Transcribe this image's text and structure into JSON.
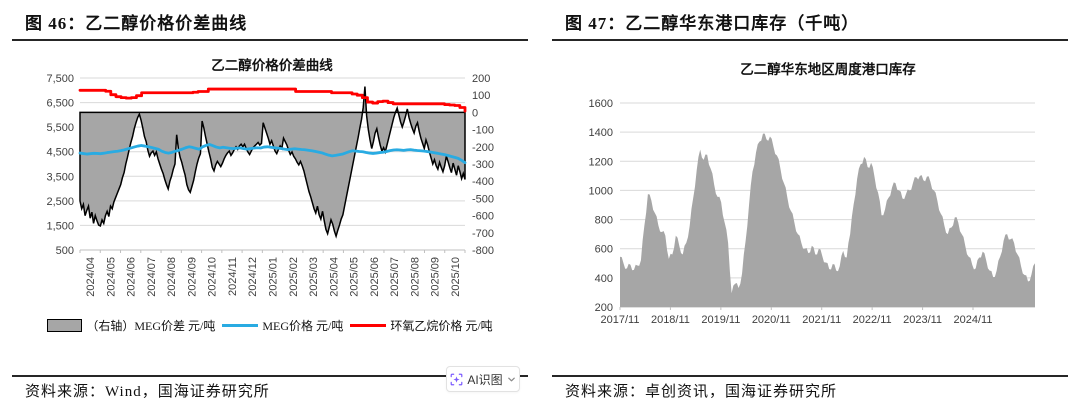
{
  "figures": [
    {
      "heading": "图 46：乙二醇价格价差曲线",
      "source": "资料来源：Wind，国海证券研究所"
    },
    {
      "heading": "图 47：乙二醇华东港口库存（千吨）",
      "source": "资料来源：卓创资讯，国海证券研究所"
    }
  ],
  "ai_badge": {
    "label": "AI识图"
  },
  "chart_data": [
    {
      "type": "line",
      "title": "乙二醇价格价差曲线",
      "x_labels": [
        "2024/04",
        "2024/05",
        "2024/06",
        "2024/07",
        "2024/08",
        "2024/09",
        "2024/10",
        "2024/11",
        "2024/12",
        "2025/01",
        "2025/02",
        "2025/03",
        "2025/04",
        "2025/05",
        "2025/06",
        "2025/07",
        "2025/08",
        "2025/09",
        "2025/10"
      ],
      "left_axis": {
        "min": 500,
        "max": 7500,
        "tick_values": [
          500,
          1500,
          2500,
          3500,
          4500,
          5500,
          6500,
          7500
        ],
        "tick_labels": [
          "500",
          "1,500",
          "2,500",
          "3,500",
          "4,500",
          "5,500",
          "6,500",
          "7,500"
        ]
      },
      "right_axis": {
        "min": -800,
        "max": 200,
        "tick_values": [
          200,
          100,
          0,
          -100,
          -200,
          -300,
          -400,
          -500,
          -600,
          -700,
          -800
        ],
        "tick_labels": [
          "200",
          "100",
          "0",
          "-100",
          "-200",
          "-300",
          "-400",
          "-500",
          "-600",
          "-700",
          "-800"
        ]
      },
      "series": [
        {
          "name": "（右轴）MEG价差 元/吨",
          "style": "area",
          "axis": "right",
          "fill": "#a6a6a6",
          "stroke": "#000000",
          "values": [
            -515,
            -560,
            -535,
            -600,
            -570,
            -545,
            -615,
            -580,
            -645,
            -600,
            -630,
            -655,
            -660,
            -625,
            -645,
            -600,
            -575,
            -605,
            -545,
            -560,
            -520,
            -495,
            -470,
            -445,
            -420,
            -380,
            -350,
            -300,
            -260,
            -215,
            -175,
            -140,
            -95,
            -60,
            -30,
            -10,
            -45,
            -90,
            -140,
            -170,
            -220,
            -255,
            -235,
            -225,
            -250,
            -230,
            -270,
            -300,
            -330,
            -355,
            -390,
            -420,
            -445,
            -400,
            -370,
            -330,
            -300,
            -130,
            -210,
            -260,
            -290,
            -330,
            -365,
            -420,
            -450,
            -465,
            -430,
            -395,
            -345,
            -300,
            -265,
            -240,
            -50,
            -90,
            -140,
            -185,
            -230,
            -270,
            -320,
            -340,
            -305,
            -285,
            -300,
            -315,
            -295,
            -270,
            -250,
            -235,
            -225,
            -250,
            -235,
            -215,
            -200,
            -215,
            -195,
            -185,
            -200,
            -185,
            -210,
            -230,
            -245,
            -225,
            -205,
            -195,
            -185,
            -175,
            -190,
            -180,
            -60,
            -90,
            -120,
            -150,
            -185,
            -165,
            -195,
            -225,
            -240,
            -215,
            -195,
            -210,
            -150,
            -170,
            -190,
            -220,
            -245,
            -230,
            -255,
            -270,
            -290,
            -305,
            -285,
            -310,
            -340,
            -380,
            -420,
            -460,
            -490,
            -525,
            -560,
            -585,
            -545,
            -595,
            -620,
            -575,
            -630,
            -680,
            -705,
            -665,
            -625,
            -650,
            -690,
            -720,
            -685,
            -655,
            -620,
            -595,
            -545,
            -495,
            -445,
            -395,
            -345,
            -295,
            -245,
            -195,
            -145,
            -90,
            -40,
            30,
            150,
            -20,
            -100,
            -160,
            -210,
            -170,
            -120,
            -95,
            -145,
            -190,
            -225,
            -205,
            -230,
            -190,
            -150,
            -110,
            -70,
            -30,
            0,
            25,
            -15,
            -55,
            -85,
            -55,
            -20,
            20,
            -30,
            -65,
            -95,
            -120,
            -80,
            -60,
            -110,
            -150,
            -180,
            -210,
            -160,
            -190,
            -230,
            -265,
            -300,
            -275,
            -310,
            -330,
            -290,
            -320,
            -345,
            -310,
            -255,
            -285,
            -320,
            -350,
            -295,
            -330,
            -365,
            -310,
            -345,
            -385,
            -355,
            -390
          ]
        },
        {
          "name": "MEG价格 元/吨",
          "style": "line",
          "axis": "left",
          "color": "#29abe2",
          "values": [
            4445,
            4425,
            4405,
            4420,
            4435,
            4430,
            4420,
            4440,
            4465,
            4485,
            4505,
            4520,
            4545,
            4575,
            4615,
            4655,
            4695,
            4730,
            4755,
            4730,
            4700,
            4670,
            4635,
            4600,
            4520,
            4470,
            4445,
            4475,
            4520,
            4560,
            4605,
            4660,
            4700,
            4675,
            4635,
            4600,
            4700,
            4755,
            4795,
            4745,
            4690,
            4655,
            4680,
            4660,
            4640,
            4625,
            4640,
            4655,
            4625,
            4605,
            4625,
            4645,
            4660,
            4650,
            4690,
            4700,
            4680,
            4660,
            4645,
            4630,
            4605,
            4585,
            4605,
            4620,
            4605,
            4590,
            4580,
            4560,
            4540,
            4515,
            4485,
            4455,
            4405,
            4360,
            4330,
            4350,
            4375,
            4400,
            4450,
            4500,
            4540,
            4525,
            4510,
            4500,
            4470,
            4445,
            4430,
            4445,
            4465,
            4480,
            4510,
            4545,
            4570,
            4580,
            4570,
            4555,
            4575,
            4585,
            4565,
            4550,
            4540,
            4525,
            4505,
            4485,
            4460,
            4435,
            4405,
            4380,
            4345,
            4305,
            4270,
            4230,
            4150,
            4055
          ]
        },
        {
          "name": "环氧乙烷价格 元/吨",
          "style": "line",
          "axis": "left",
          "color": "#ff0000",
          "step": true,
          "values": [
            7000,
            7000,
            7000,
            7000,
            7000,
            6960,
            6820,
            6740,
            6700,
            6680,
            6700,
            6780,
            6900,
            6900,
            6900,
            6900,
            6900,
            6900,
            6900,
            6900,
            6900,
            6900,
            6920,
            6950,
            6950,
            7050,
            7050,
            7050,
            7050,
            7050,
            7050,
            7050,
            7050,
            7050,
            7050,
            7050,
            7050,
            7050,
            7050,
            7050,
            7050,
            7050,
            6950,
            6950,
            6950,
            6950,
            6950,
            6950,
            6950,
            6900,
            6900,
            6900,
            6900,
            6850,
            6800,
            6700,
            6520,
            6480,
            6540,
            6560,
            6500,
            6450,
            6450,
            6450,
            6450,
            6450,
            6450,
            6450,
            6450,
            6450,
            6450,
            6420,
            6400,
            6380,
            6300,
            6150
          ]
        }
      ]
    },
    {
      "type": "area",
      "title": "乙二醇华东地区周度港口库存",
      "x_labels": [
        "2017/11",
        "2018/11",
        "2019/11",
        "2020/11",
        "2021/11",
        "2022/11",
        "2023/11",
        "2024/11"
      ],
      "ylim": [
        200,
        1600
      ],
      "tick_values": [
        200,
        400,
        600,
        800,
        1000,
        1200,
        1400,
        1600
      ],
      "tick_labels": [
        "200",
        "400",
        "600",
        "800",
        "1000",
        "1200",
        "1400",
        "1600"
      ],
      "fill": "#a6a6a6",
      "values": [
        545,
        542,
        500,
        462,
        465,
        497,
        490,
        452,
        455,
        490,
        485,
        482,
        520,
        660,
        760,
        847,
        975,
        972,
        930,
        867,
        845,
        822,
        760,
        717,
        715,
        722,
        690,
        590,
        530,
        565,
        560,
        605,
        690,
        675,
        620,
        570,
        560,
        620,
        640,
        680,
        760,
        875,
        950,
        1025,
        1140,
        1230,
        1280,
        1225,
        1210,
        1247,
        1245,
        1177,
        1150,
        1115,
        1040,
        977,
        955,
        957,
        920,
        830,
        780,
        730,
        640,
        447,
        295,
        347,
        360,
        365,
        330,
        360,
        430,
        560,
        650,
        755,
        900,
        1035,
        1130,
        1175,
        1260,
        1317,
        1335,
        1342,
        1390,
        1390,
        1350,
        1340,
        1370,
        1355,
        1300,
        1250,
        1240,
        1215,
        1150,
        1080,
        1050,
        1020,
        950,
        885,
        860,
        840,
        780,
        720,
        700,
        690,
        640,
        600,
        600,
        605,
        570,
        575,
        620,
        610,
        560,
        560,
        600,
        595,
        550,
        507,
        505,
        502,
        460,
        457,
        495,
        492,
        450,
        445,
        480,
        552,
        585,
        542,
        540,
        640,
        700,
        822,
        905,
        972,
        1080,
        1150,
        1180,
        1185,
        1230,
        1215,
        1160,
        1155,
        1190,
        1160,
        1090,
        1017,
        985,
        927,
        830,
        830,
        870,
        930,
        950,
        965,
        1020,
        1055,
        1050,
        1005,
        1000,
        992,
        945,
        940,
        975,
        1007,
        1000,
        1005,
        1050,
        1090,
        1090,
        1075,
        1100,
        1105,
        1070,
        1062,
        1095,
        1097,
        1060,
        1010,
        1000,
        985,
        930,
        865,
        840,
        820,
        760,
        710,
        700,
        742,
        745,
        760,
        815,
        817,
        780,
        720,
        700,
        680,
        620,
        562,
        545,
        537,
        490,
        457,
        465,
        522,
        540,
        540,
        580,
        570,
        520,
        465,
        450,
        447,
        405,
        407,
        450,
        517,
        545,
        580,
        655,
        697,
        700,
        662,
        665,
        672,
        640,
        580,
        560,
        540,
        480,
        430,
        420,
        417,
        375,
        380,
        425,
        482,
        500
      ]
    }
  ]
}
